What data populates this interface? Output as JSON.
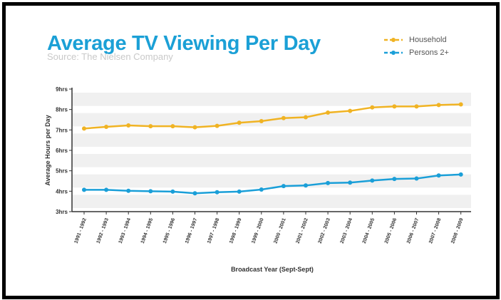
{
  "chart_data": {
    "type": "line",
    "title": "Average TV Viewing Per Day",
    "subtitle": "Source: The Nielsen Company",
    "xlabel": "Broadcast Year (Sept-Sept)",
    "ylabel": "Average Hours per Day",
    "y_tick_labels": [
      "3hrs",
      "4hrs",
      "5hrs",
      "6hrs",
      "7hrs",
      "8hrs",
      "9hrs"
    ],
    "ylim": [
      3,
      9
    ],
    "categories": [
      "1991 - 1992",
      "1992 - 1993",
      "1993 - 1994",
      "1994 - 1995",
      "1995 - 1996",
      "1996 - 1997",
      "1997 - 1998",
      "1998 - 1999",
      "1999 - 2000",
      "2000 - 2001",
      "2001 - 2002",
      "2002 - 2003",
      "2003 - 2004",
      "2004 - 2005",
      "2005 - 2006",
      "2006 - 2007",
      "2007 - 2008",
      "2008 - 2009"
    ],
    "series": [
      {
        "name": "Household",
        "color": "#f0b323",
        "values": [
          7.07,
          7.15,
          7.22,
          7.18,
          7.18,
          7.13,
          7.2,
          7.35,
          7.43,
          7.58,
          7.62,
          7.85,
          7.93,
          8.1,
          8.15,
          8.15,
          8.22,
          8.25
        ]
      },
      {
        "name": "Persons 2+",
        "color": "#1a9fd8",
        "values": [
          4.07,
          4.07,
          4.02,
          4.0,
          3.98,
          3.9,
          3.95,
          3.98,
          4.08,
          4.25,
          4.28,
          4.4,
          4.42,
          4.52,
          4.6,
          4.62,
          4.77,
          4.82
        ]
      }
    ],
    "grid": "alternating horizontal bands",
    "legend": "top-right"
  }
}
